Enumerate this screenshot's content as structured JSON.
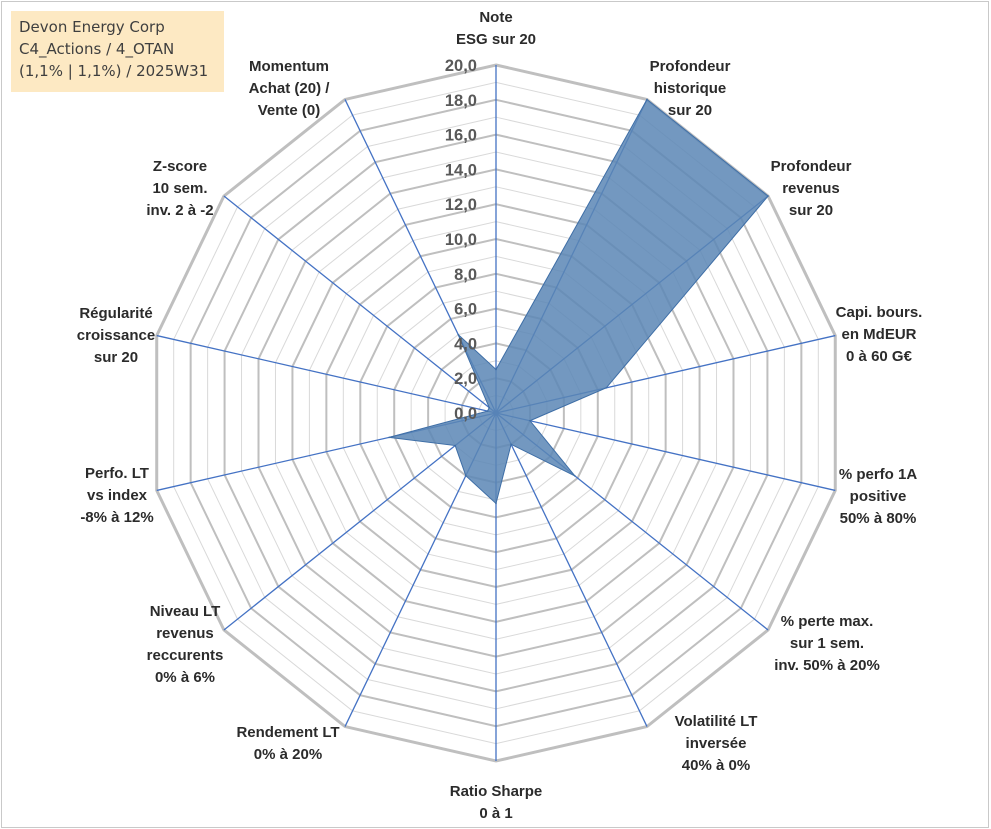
{
  "title": {
    "line1": "Devon Energy Corp",
    "line2": "C4_Actions / 4_OTAN",
    "line3": "(1,1% | 1,1%) / 2025W31"
  },
  "colors": {
    "fill": "#5b86b5",
    "stroke": "#3e6ea6",
    "spoke": "#4472c4",
    "ring_major": "#bfbfbf",
    "ring_minor": "#d9d9d9",
    "title_bg": "#fde9c3"
  },
  "chart_data": {
    "type": "radar",
    "axes": [
      [
        "Note",
        "ESG sur 20"
      ],
      [
        "Profondeur",
        "historique",
        "sur 20"
      ],
      [
        "Profondeur",
        "revenus",
        "sur 20"
      ],
      [
        "Capi. bours.",
        "en MdEUR",
        "0 à 60 G€"
      ],
      [
        "% perfo 1A",
        "positive",
        "50% à 80%"
      ],
      [
        "% perte max.",
        "sur 1 sem.",
        "inv. 50% à 20%"
      ],
      [
        "Volatilité LT",
        "inversée",
        "40% à 0%"
      ],
      [
        "Ratio Sharpe",
        "0 à 1"
      ],
      [
        "Rendement LT",
        "0% à 20%"
      ],
      [
        "Niveau LT",
        "revenus",
        "reccurents",
        "0% à 6%"
      ],
      [
        "Perfo. LT",
        "vs index",
        "-8% à 12%"
      ],
      [
        "Régularité",
        "croissance",
        "sur 20"
      ],
      [
        "Z-score",
        "10 sem.",
        "inv. 2 à -2"
      ],
      [
        "Momentum",
        "Achat (20) /",
        "Vente (0)"
      ]
    ],
    "values": [
      2.5,
      20.0,
      20.0,
      6.5,
      2.0,
      5.8,
      2.0,
      5.2,
      4.0,
      3.0,
      6.3,
      0.5,
      0.5,
      5.0
    ],
    "r_range": [
      0,
      20
    ],
    "ticks": [
      "0,0",
      "2,0",
      "4,0",
      "6,0",
      "8,0",
      "10,0",
      "12,0",
      "14,0",
      "16,0",
      "18,0",
      "20,0"
    ],
    "tick_values": [
      0,
      2,
      4,
      6,
      8,
      10,
      12,
      14,
      16,
      18,
      20
    ],
    "grid": true
  }
}
